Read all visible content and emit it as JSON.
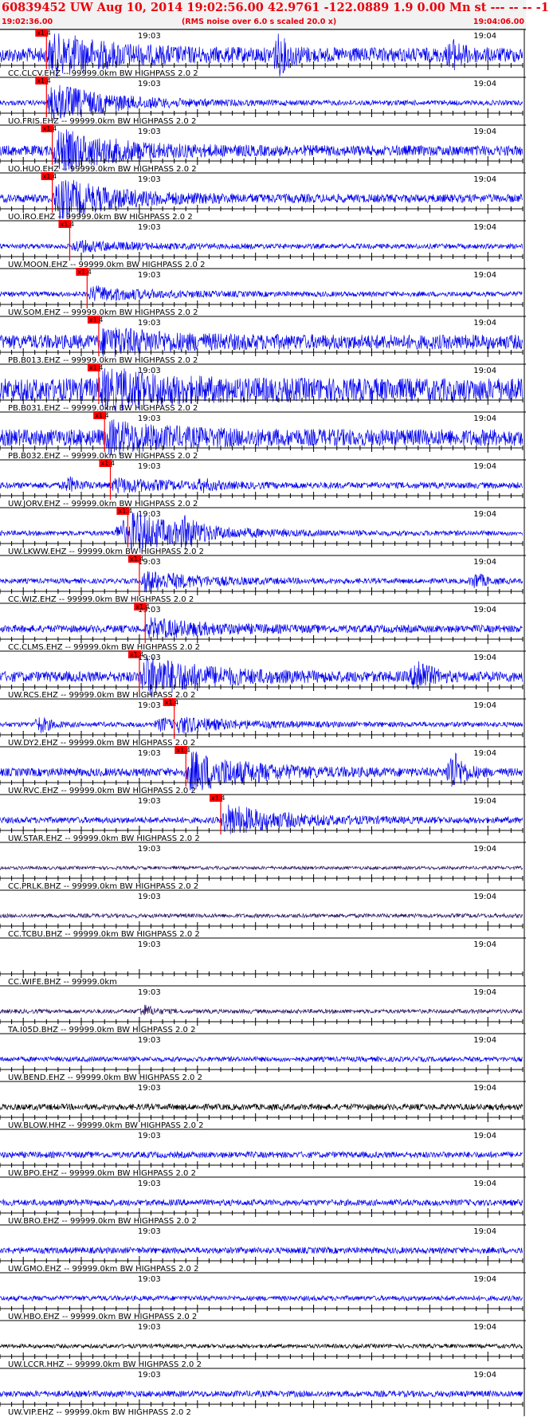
{
  "header": {
    "title": "60839452 UW Aug 10, 2014 19:02:56.00   42.9761 -122.0889  1.9 0.00 Mn st --- -- --   -1",
    "start_time": "19:02:36.00",
    "end_time": "19:04:06.00",
    "rms_note": "(RMS noise over 6.0 s scaled 20.0 x)"
  },
  "colors": {
    "trace_blue": "#0000ee",
    "trace_purple": "#2a1060",
    "trace_black": "#000000",
    "pick_red": "#ff0000",
    "axis": "#000000",
    "header_text": "#e8000b"
  },
  "chart_data": {
    "type": "line",
    "title": "",
    "xlabel": "",
    "ylabel": "",
    "x_unit": "time (UTC)",
    "xlim": [
      "19:02:36.00",
      "19:04:06.00"
    ],
    "minute_marks": [
      "19:03",
      "19:04"
    ],
    "pick_label": "x1.4",
    "series": [
      {
        "label": "CC.CLCV.EHZ -- 99999.0km BW  HIGHPASS  2.0  2",
        "pick": "19:02:44",
        "amp": 1.0,
        "noise": 0.35,
        "color": "blue",
        "events": [
          [
            48,
            0.8
          ],
          [
            78,
            0.5
          ]
        ]
      },
      {
        "label": "UO.FRIS.EHZ -- 99999.0km BW  HIGHPASS  2.0  2",
        "pick": "19:02:44",
        "amp": 1.0,
        "noise": 0.12,
        "color": "blue",
        "events": []
      },
      {
        "label": "UO.HUO.EHZ -- 99999.0km BW  HIGHPASS  2.0  2",
        "pick": "19:02:45",
        "amp": 1.0,
        "noise": 0.25,
        "color": "blue",
        "events": []
      },
      {
        "label": "UO.IRO.EHZ -- 99999.0km BW  HIGHPASS  2.0  2",
        "pick": "19:02:45",
        "amp": 1.0,
        "noise": 0.2,
        "color": "blue",
        "events": []
      },
      {
        "label": "UW.MOON.EHZ -- 99999.0km BW  HIGHPASS  2.0  2",
        "pick": "19:02:48",
        "amp": 0.25,
        "noise": 0.12,
        "color": "blue",
        "events": []
      },
      {
        "label": "UW.SOM.EHZ -- 99999.0km BW  HIGHPASS  2.0  2",
        "pick": "19:02:51",
        "amp": 0.35,
        "noise": 0.12,
        "color": "blue",
        "events": []
      },
      {
        "label": "PB.B013.EHZ -- 99999.0km BW  HIGHPASS  2.0  2",
        "pick": "19:02:53",
        "amp": 0.55,
        "noise": 0.35,
        "color": "blue",
        "events": []
      },
      {
        "label": "PB.B031.EHZ -- 99999.0km BW  HIGHPASS  2.0  2",
        "pick": "19:02:53",
        "amp": 0.75,
        "noise": 0.55,
        "color": "blue",
        "events": []
      },
      {
        "label": "PB.B032.EHZ -- 99999.0km BW  HIGHPASS  2.0  2",
        "pick": "19:02:54",
        "amp": 0.6,
        "noise": 0.4,
        "color": "blue",
        "events": []
      },
      {
        "label": "UW.JORV.EHZ -- 99999.0km BW  HIGHPASS  2.0  2",
        "pick": "19:02:55",
        "amp": 0.3,
        "noise": 0.15,
        "color": "blue",
        "events": [
          [
            12,
            0.3
          ],
          [
            35,
            0.2
          ]
        ]
      },
      {
        "label": "UW.LKWW.EHZ -- 99999.0km BW  HIGHPASS  2.0  2",
        "pick": "19:02:58",
        "amp": 1.0,
        "noise": 0.12,
        "color": "blue",
        "events": [
          [
            21,
            0.6
          ],
          [
            32,
            0.45
          ]
        ]
      },
      {
        "label": "CC.WIZ.EHZ -- 99999.0km BW  HIGHPASS  2.0  2",
        "pick": "19:03:00",
        "amp": 0.5,
        "noise": 0.12,
        "color": "blue",
        "events": [
          [
            82,
            0.35
          ],
          [
            92,
            0.75
          ]
        ]
      },
      {
        "label": "CC.CLMS.EHZ -- 99999.0km BW  HIGHPASS  2.0  2",
        "pick": "19:03:01",
        "amp": 0.45,
        "noise": 0.18,
        "color": "blue",
        "events": []
      },
      {
        "label": "UW.RCS.EHZ -- 99999.0km BW  HIGHPASS  2.0  2",
        "pick": "19:03:00",
        "amp": 1.0,
        "noise": 0.25,
        "color": "blue",
        "events": [
          [
            72,
            0.9
          ]
        ]
      },
      {
        "label": "UW.DY2.EHZ -- 99999.0km BW  HIGHPASS  2.0  2",
        "pick": "19:03:06",
        "amp": 0.35,
        "noise": 0.12,
        "color": "blue",
        "events": [
          [
            7,
            0.35
          ],
          [
            28,
            0.3
          ]
        ]
      },
      {
        "label": "UW.RVC.EHZ -- 99999.0km BW  HIGHPASS  2.0  2",
        "pick": "19:03:08",
        "amp": 1.0,
        "noise": 0.2,
        "color": "blue",
        "events": [
          [
            78,
            1.0
          ]
        ]
      },
      {
        "label": "UW.STAR.EHZ -- 99999.0km BW  HIGHPASS  2.0  2",
        "pick": "19:03:14",
        "amp": 0.75,
        "noise": 0.15,
        "color": "blue",
        "events": [
          [
            93,
            0.85
          ]
        ]
      },
      {
        "label": "CC.PRLK.BHZ -- 99999.0km BW  HIGHPASS  2.0  2",
        "pick": null,
        "amp": 0,
        "noise": 0.08,
        "color": "purple",
        "events": []
      },
      {
        "label": "CC.TCBU.BHZ -- 99999.0km BW  HIGHPASS  2.0  2",
        "pick": null,
        "amp": 0,
        "noise": 0.1,
        "color": "purple",
        "events": []
      },
      {
        "label": "CC.WIFE.BHZ -- 99999.0km",
        "pick": null,
        "amp": 0,
        "noise": 0,
        "color": "purple",
        "events": []
      },
      {
        "label": "TA.I05D.BHZ -- 99999.0km BW  HIGHPASS  2.0  2",
        "pick": null,
        "amp": 0,
        "noise": 0.1,
        "color": "purple",
        "events": [
          [
            25,
            0.25
          ]
        ]
      },
      {
        "label": "UW.BEND.EHZ -- 99999.0km BW  HIGHPASS  2.0  2",
        "pick": null,
        "amp": 0,
        "noise": 0.12,
        "color": "blue",
        "events": []
      },
      {
        "label": "UW.BLOW.HHZ -- 99999.0km BW  HIGHPASS  2.0  2",
        "pick": null,
        "amp": 0,
        "noise": 0.15,
        "color": "black",
        "events": []
      },
      {
        "label": "UW.BPO.EHZ -- 99999.0km BW  HIGHPASS  2.0  2",
        "pick": null,
        "amp": 0,
        "noise": 0.15,
        "color": "blue",
        "events": []
      },
      {
        "label": "UW.BRO.EHZ -- 99999.0km BW  HIGHPASS  2.0  2",
        "pick": null,
        "amp": 0,
        "noise": 0.15,
        "color": "blue",
        "events": []
      },
      {
        "label": "UW.GMO.EHZ -- 99999.0km BW  HIGHPASS  2.0  2",
        "pick": null,
        "amp": 0,
        "noise": 0.15,
        "color": "blue",
        "events": []
      },
      {
        "label": "UW.HBO.EHZ -- 99999.0km BW  HIGHPASS  2.0  2",
        "pick": null,
        "amp": 0,
        "noise": 0.12,
        "color": "blue",
        "events": []
      },
      {
        "label": "UW.LCCR.HHZ -- 99999.0km BW  HIGHPASS  2.0  2",
        "pick": null,
        "amp": 0,
        "noise": 0.1,
        "color": "black",
        "events": []
      },
      {
        "label": "UW.VIP.EHZ -- 99999.0km BW  HIGHPASS  2.0  2",
        "pick": null,
        "amp": 0,
        "noise": 0.15,
        "color": "blue",
        "events": []
      }
    ]
  }
}
